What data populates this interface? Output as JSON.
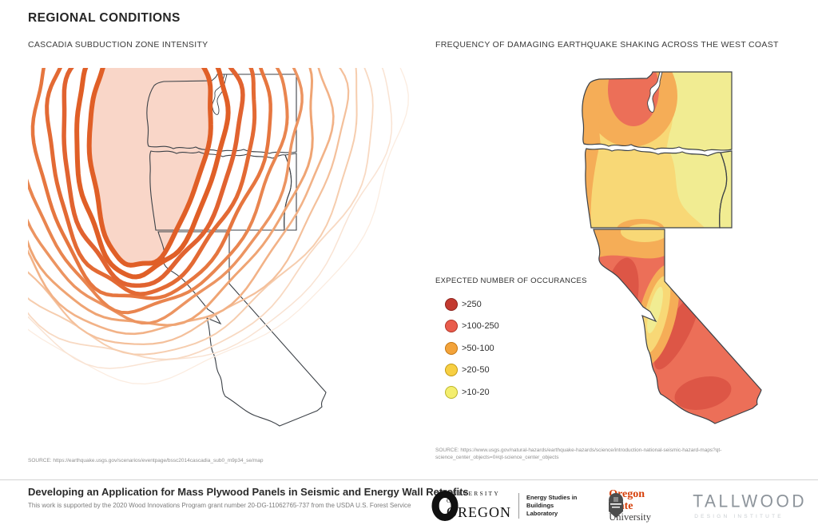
{
  "header": {
    "title": "REGIONAL CONDITIONS"
  },
  "left_map": {
    "title": "CASCADIA SUBDUCTION ZONE INTENSITY",
    "source": "SOURCE: https://earthquake.usgs.gov/scenarios/eventpage/bssc2014cascadia_sub0_m9p34_se/map",
    "contours": {
      "count": 14,
      "fill_label": "intensity-core",
      "colors": [
        "#e05f27",
        "#e05f27",
        "#e16330",
        "#e36a34",
        "#e6763f",
        "#e9854f",
        "#ec9461",
        "#efa473",
        "#f2b287",
        "#f4c09b",
        "#f6cdae",
        "#f8d9c2",
        "#f9e3d3",
        "#fbece0"
      ],
      "widths": [
        6,
        6,
        5.5,
        5,
        4.5,
        4,
        3.5,
        3,
        2.6,
        2.2,
        2,
        1.8,
        1.5,
        1.3
      ]
    }
  },
  "right_map": {
    "title": "FREQUENCY OF DAMAGING EARTHQUAKE SHAKING ACROSS THE WEST COAST",
    "source": "SOURCE: https://www.usgs.gov/natural-hazards/earthquake-hazards/science/introduction-national-seismic-hazard-maps?qt-science_center_objects=0#qt-science_center_objects",
    "legend": {
      "title": "EXPECTED NUMBER OF OCCURANCES",
      "items": [
        {
          "label": ">250",
          "color": "#c33a30",
          "stroke": "#8c241d"
        },
        {
          "label": ">100-250",
          "color": "#e95c4c",
          "stroke": "#b13427"
        },
        {
          "label": ">50-100",
          "color": "#f3a33a",
          "stroke": "#c37714"
        },
        {
          "label": ">20-50",
          "color": "#f7cf43",
          "stroke": "#c19a16"
        },
        {
          "label": ">10-20",
          "color": "#f4ee6e",
          "stroke": "#bcb52c"
        }
      ]
    }
  },
  "colors": {
    "pink": "#f9d6c8",
    "yellow": "#f8d876",
    "pale": "#f1ec92",
    "orange": "#f5ad57",
    "red": "#ec6f58",
    "darkred": "#dd5646",
    "border": "#3c4147"
  },
  "footer": {
    "title": "Developing an Application for Mass Plywood Panels in Seismic and Energy Wall Retrofits",
    "support": "This work is supported by the 2020 Wood Innovations Program grant number 20-DG-11062765-737 from the USDA U.S. Forest Service",
    "logos": {
      "uo_small": "UNIVERSITY OF",
      "uo_big": "OREGON",
      "esbl_line1": "Energy Studies in",
      "esbl_line2": "Buildings Laboratory",
      "osu_line1": "Oregon State",
      "osu_line2": "University",
      "tallwood": "TALLWOOD",
      "tallwood_sub": "DESIGN INSTITUTE"
    }
  }
}
